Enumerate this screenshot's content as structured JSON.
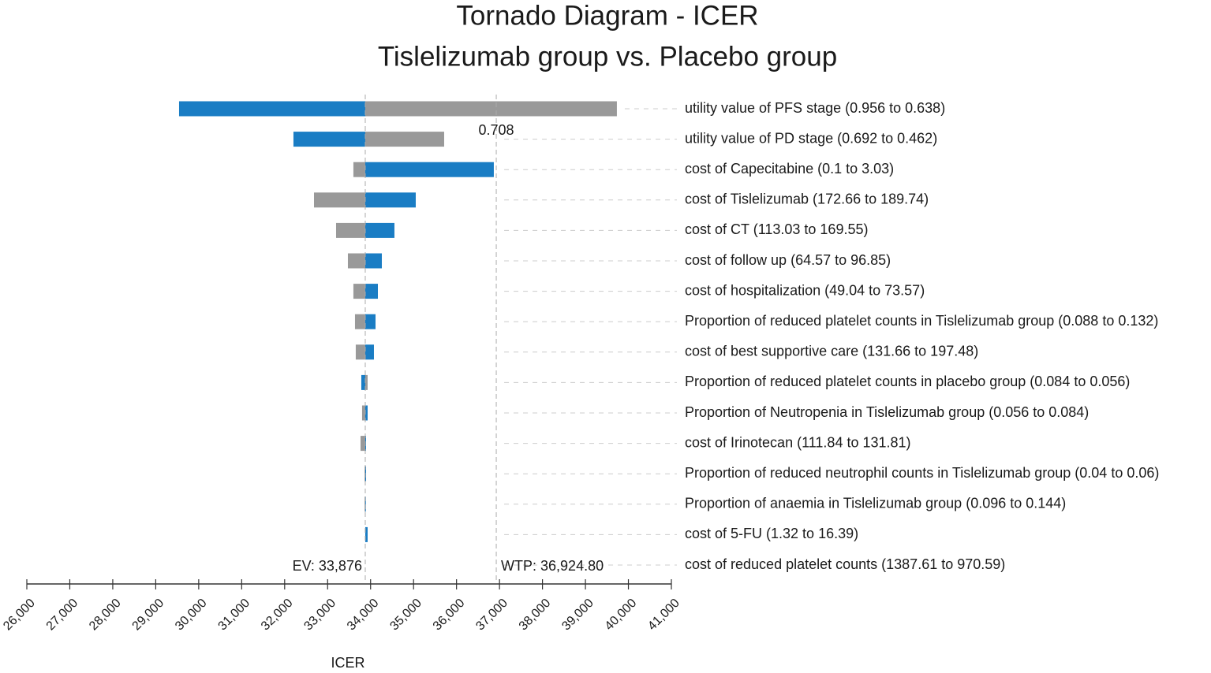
{
  "chart_data": {
    "type": "tornado",
    "title": "Tornado Diagram - ICER",
    "subtitle": "Tislelizumab group vs. Placebo group",
    "xlabel": "ICER",
    "annotation": "0.708",
    "ev": {
      "value": 33876,
      "label": "EV: 33,876"
    },
    "wtp": {
      "value": 36924.8,
      "label: ": null,
      "label": "WTP: 36,924.80"
    },
    "categories": [
      "utility value of PFS stage (0.956 to 0.638)",
      "utility value of PD stage (0.692 to 0.462)",
      "cost of Capecitabine (0.1 to 3.03)",
      "cost of Tislelizumab (172.66 to 189.74)",
      "cost of CT (113.03 to 169.55)",
      "cost of follow up (64.57 to 96.85)",
      "cost of hospitalization (49.04 to 73.57)",
      "Proportion of reduced platelet counts in Tislelizumab group (0.088 to 0.132)",
      "cost of best supportive care (131.66 to 197.48)",
      "Proportion of reduced platelet counts in placebo group (0.084 to 0.056)",
      "Proportion of Neutropenia in Tislelizumab group (0.056 to 0.084)",
      "cost of Irinotecan (111.84 to 131.81)",
      "Proportion of reduced neutrophil counts in Tislelizumab group (0.04 to 0.06)",
      "Proportion of anaemia in Tislelizumab group (0.096 to 0.144)",
      "cost of 5-FU (1.32 to 16.39)",
      "cost of reduced platelet counts (1387.61 to 970.59)"
    ],
    "series": [
      {
        "color": "#999999",
        "values": [
          39732,
          35712,
          33600,
          32683,
          33197,
          33472,
          33600,
          33637,
          33655,
          33931,
          33802,
          33766,
          33860,
          33860,
          33876,
          33876
        ]
      },
      {
        "color": "#1a7dc4",
        "values": [
          29543,
          32205,
          36868,
          35051,
          34555,
          34262,
          34170,
          34115,
          34078,
          33784,
          33931,
          33894,
          33895,
          33890,
          33931,
          33876
        ]
      }
    ],
    "xlim": [
      26000,
      41000
    ],
    "xticks": [
      {
        "value": 26000,
        "label": "26,000"
      },
      {
        "value": 27000,
        "label": "27,000"
      },
      {
        "value": 28000,
        "label": "28,000"
      },
      {
        "value": 29000,
        "label": "29,000"
      },
      {
        "value": 30000,
        "label": "30,000"
      },
      {
        "value": 31000,
        "label": "31,000"
      },
      {
        "value": 32000,
        "label": "32,000"
      },
      {
        "value": 33000,
        "label": "33,000"
      },
      {
        "value": 34000,
        "label": "34,000"
      },
      {
        "value": 35000,
        "label": "35,000"
      },
      {
        "value": 36000,
        "label": "36,000"
      },
      {
        "value": 37000,
        "label": "37,000"
      },
      {
        "value": 38000,
        "label": "38,000"
      },
      {
        "value": 39000,
        "label": "39,000"
      },
      {
        "value": 40000,
        "label": "40,000"
      },
      {
        "value": 41000,
        "label": "41,000"
      }
    ]
  }
}
